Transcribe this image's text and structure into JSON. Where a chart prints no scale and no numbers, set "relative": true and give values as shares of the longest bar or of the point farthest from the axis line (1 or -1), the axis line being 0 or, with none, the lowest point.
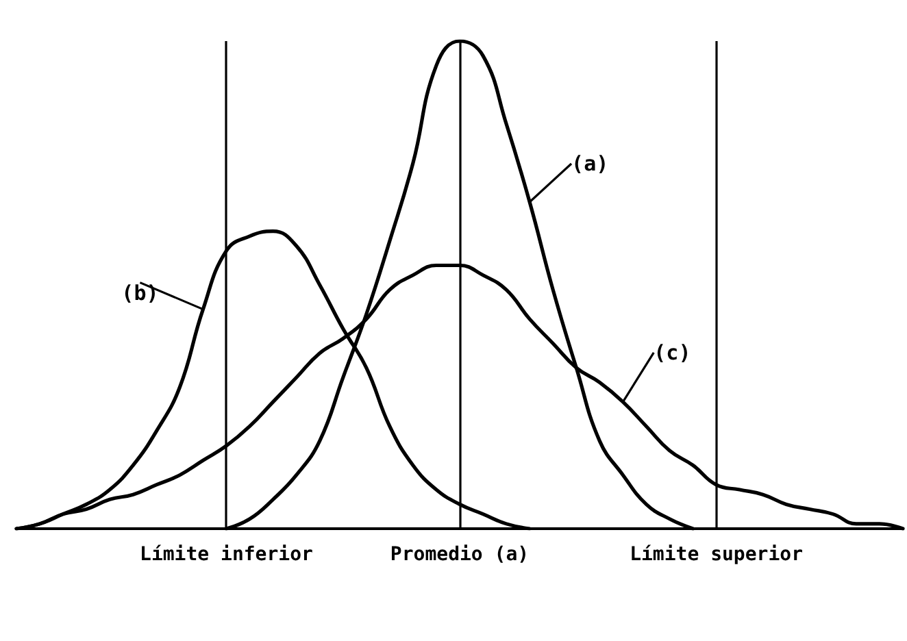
{
  "chart_data": {
    "type": "line",
    "relative": true,
    "tick_labels": "x",
    "categories": [
      null,
      null,
      null,
      null,
      null,
      null,
      null,
      null,
      null,
      "Límite inferior",
      null,
      null,
      null,
      null,
      null,
      null,
      null,
      null,
      null,
      "Promedio (a)",
      null,
      null,
      null,
      null,
      null,
      null,
      null,
      null,
      null,
      null,
      "Límite superior",
      null,
      null,
      null,
      null,
      null,
      null,
      null,
      null
    ],
    "series": [
      {
        "name": "(a)",
        "color": "#000000",
        "values": [
          null,
          null,
          null,
          null,
          null,
          null,
          null,
          null,
          null,
          0,
          0.02,
          0.06,
          0.11,
          0.18,
          0.31,
          0.44,
          0.59,
          0.75,
          0.95,
          1,
          0.97,
          0.83,
          0.67,
          0.49,
          0.33,
          0.18,
          0.11,
          0.05,
          0.02,
          0,
          null,
          null,
          null,
          null,
          null,
          null,
          null,
          null,
          null
        ]
      },
      {
        "name": "(b)",
        "color": "#000000",
        "values": [
          0,
          0.01,
          0.03,
          0.05,
          0.08,
          0.13,
          0.2,
          0.29,
          0.45,
          0.57,
          0.6,
          0.61,
          0.58,
          0.5,
          0.41,
          0.33,
          0.21,
          0.13,
          0.08,
          0.05,
          0.03,
          0.01,
          0,
          null,
          null,
          null,
          null,
          null,
          null,
          null,
          null,
          null,
          null,
          null,
          null,
          null,
          null,
          null,
          null
        ]
      },
      {
        "name": "(c)",
        "color": "#000000",
        "values": [
          0,
          0.01,
          0.03,
          0.04,
          0.06,
          0.07,
          0.09,
          0.11,
          0.14,
          0.17,
          0.21,
          0.26,
          0.31,
          0.36,
          0.39,
          0.43,
          0.49,
          0.52,
          0.54,
          0.54,
          0.52,
          0.49,
          0.43,
          0.38,
          0.33,
          0.3,
          0.26,
          0.21,
          0.16,
          0.13,
          0.09,
          0.08,
          0.07,
          0.05,
          0.04,
          0.03,
          0.01,
          0.01,
          0
        ]
      }
    ],
    "ref_lines": [
      {
        "axis": "x",
        "value": "Límite inferior"
      },
      {
        "axis": "x",
        "value": "Promedio (a)"
      },
      {
        "axis": "x",
        "value": "Límite superior"
      }
    ]
  }
}
